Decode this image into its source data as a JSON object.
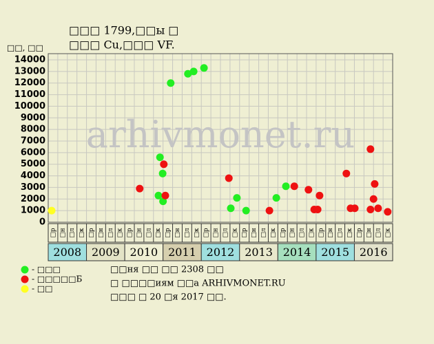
{
  "chart_data": {
    "type": "scatter",
    "title": "□□□ 1799,□□ы □",
    "subtitle": "□□□ Cu,□□□ VF.",
    "y_label": "□□, □□",
    "watermark": "arhivmonet.ru",
    "xlim": [
      2008,
      2017
    ],
    "ylim": [
      0,
      14000
    ],
    "yticks": [
      0,
      1000,
      2000,
      3000,
      4000,
      5000,
      6000,
      7000,
      8000,
      9000,
      10000,
      11000,
      12000,
      13000,
      14000
    ],
    "xticks": [
      {
        "value": 2008.5,
        "label": "2008"
      },
      {
        "value": 2009.5,
        "label": "2009"
      },
      {
        "value": 2010.5,
        "label": "2010"
      },
      {
        "value": 2011.5,
        "label": "2011"
      },
      {
        "value": 2012.5,
        "label": "2012"
      },
      {
        "value": 2013.5,
        "label": "2013"
      },
      {
        "value": 2014.5,
        "label": "2014"
      },
      {
        "value": 2015.5,
        "label": "2015"
      },
      {
        "value": 2016.5,
        "label": "2016"
      }
    ],
    "year_colors": [
      "#9fdfdf",
      "#e3e3c6",
      "#efefd3",
      "#d6cfae",
      "#9fdfdf",
      "#e8e8cc",
      "#a6dfbe",
      "#9fdfdf",
      "#e3e3cc"
    ],
    "quarter_labels": [
      "□р",
      "□н",
      "□л",
      "□к"
    ],
    "grid": true,
    "series": [
      {
        "name": "- □□□",
        "color": "#22ee22",
        "x": [
          2010.88,
          2010.92,
          2010.99,
          2011.0,
          2011.2,
          2011.65,
          2011.8,
          2012.07,
          2012.77,
          2012.93,
          2013.17,
          2013.96,
          2014.21
        ],
        "values": [
          2300,
          5600,
          4200,
          1800,
          12000,
          12800,
          13000,
          13300,
          1200,
          2100,
          1000,
          2100,
          3100
        ]
      },
      {
        "name": "- □□□□□Б",
        "color": "#ee1111",
        "x": [
          2010.39,
          2011.02,
          2011.06,
          2012.72,
          2013.78,
          2014.43,
          2014.8,
          2014.95,
          2015.04,
          2015.09,
          2015.79,
          2015.9,
          2016.01,
          2016.42,
          2016.42,
          2016.5,
          2016.53,
          2016.62,
          2016.87
        ],
        "values": [
          2900,
          5000,
          2300,
          3800,
          1000,
          3100,
          2800,
          1100,
          1100,
          2300,
          4200,
          1200,
          1200,
          6300,
          1100,
          2000,
          3300,
          1200,
          900
        ]
      },
      {
        "name": "- □□",
        "color": "#ffff22",
        "x": [
          2008.09
        ],
        "values": [
          1000
        ]
      }
    ],
    "footer": [
      "□□ня □□ □□ 2308 □□",
      "□ □□□□иям □□а ARHIVMONET.RU",
      "□□□ □ 20 □я 2017 □□."
    ]
  }
}
